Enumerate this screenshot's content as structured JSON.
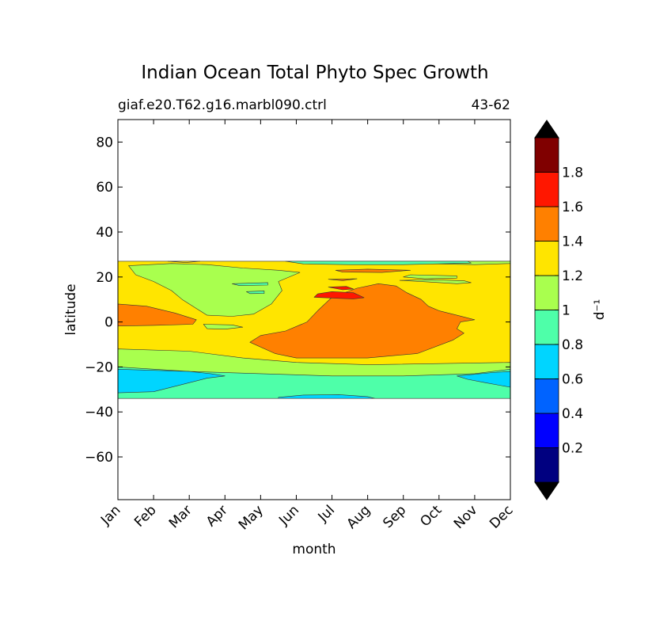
{
  "chart_data": {
    "type": "heatmap",
    "title": "Indian Ocean Total Phyto Spec Growth",
    "subtitle_left": "giaf.e20.T62.g16.marbl090.ctrl",
    "subtitle_right": "43-62",
    "xlabel": "month",
    "ylabel": "latitude",
    "x_categories": [
      "Jan",
      "Feb",
      "Mar",
      "Apr",
      "May",
      "Jun",
      "Jul",
      "Aug",
      "Sep",
      "Oct",
      "Nov",
      "Dec"
    ],
    "xlim": [
      0,
      11
    ],
    "ylim": [
      -79,
      90
    ],
    "y_ticks": [
      80,
      60,
      40,
      20,
      0,
      -20,
      -40,
      -60
    ],
    "y_tick_labels": [
      "80",
      "60",
      "40",
      "20",
      "0",
      "−20",
      "−40",
      "−60"
    ],
    "data_lat_range": [
      -34,
      27
    ],
    "grid": false,
    "colorbar": {
      "label": "d⁻¹",
      "levels": [
        0,
        0.2,
        0.4,
        0.6,
        0.8,
        1.0,
        1.2,
        1.4,
        1.6,
        1.8,
        2.0
      ],
      "tick_values": [
        0.2,
        0.4,
        0.6,
        0.8,
        1.0,
        1.2,
        1.4,
        1.6,
        1.8
      ],
      "tick_labels": [
        "0.2",
        "0.4",
        "0.6",
        "0.8",
        "1",
        "1.2",
        "1.4",
        "1.6",
        "1.8"
      ],
      "colors": [
        "#000080",
        "#0000ff",
        "#0063ff",
        "#00d5ff",
        "#4effa9",
        "#a9ff4e",
        "#ffe500",
        "#ff8000",
        "#ff1700",
        "#800000"
      ],
      "extend": "both",
      "under_color": "#000000",
      "over_color": "#000000"
    },
    "regions": [
      {
        "level": 1.2,
        "color": "#ffe500",
        "points": [
          [
            0,
            27
          ],
          [
            11,
            27
          ],
          [
            11,
            -34
          ],
          [
            0,
            -34
          ]
        ]
      },
      {
        "level": 1.0,
        "color": "#a9ff4e",
        "points": [
          [
            0,
            -12
          ],
          [
            2,
            -13
          ],
          [
            3.5,
            -16
          ],
          [
            5,
            -18
          ],
          [
            7,
            -19
          ],
          [
            9,
            -18.5
          ],
          [
            11,
            -18
          ],
          [
            11,
            -34
          ],
          [
            0,
            -34
          ]
        ]
      },
      {
        "level": 0.8,
        "color": "#4effa9",
        "points": [
          [
            0,
            -20
          ],
          [
            2,
            -22
          ],
          [
            4,
            -23
          ],
          [
            6,
            -24
          ],
          [
            8,
            -24
          ],
          [
            10,
            -23
          ],
          [
            11,
            -21
          ],
          [
            11,
            -34
          ],
          [
            0,
            -34
          ]
        ]
      },
      {
        "level": 0.6,
        "color": "#00d5ff",
        "points": [
          [
            0,
            -21
          ],
          [
            1,
            -21.5
          ],
          [
            2,
            -22
          ],
          [
            2.6,
            -23
          ],
          [
            3,
            -24
          ],
          [
            2.5,
            -25
          ],
          [
            2,
            -27
          ],
          [
            1,
            -31
          ],
          [
            0,
            -31.5
          ]
        ]
      },
      {
        "level": 0.6,
        "color": "#00d5ff",
        "points": [
          [
            9.5,
            -24
          ],
          [
            10.5,
            -22.5
          ],
          [
            11,
            -22
          ],
          [
            11,
            -29
          ],
          [
            10.3,
            -27
          ],
          [
            9.8,
            -25.5
          ]
        ]
      },
      {
        "level": 0.6,
        "color": "#00d5ff",
        "points": [
          [
            4.5,
            -33.5
          ],
          [
            5.2,
            -32.5
          ],
          [
            6.2,
            -32.3
          ],
          [
            7,
            -33.2
          ],
          [
            7.2,
            -34
          ],
          [
            4.5,
            -34
          ]
        ]
      },
      {
        "level": 1.0,
        "color": "#a9ff4e",
        "points": [
          [
            0.3,
            25
          ],
          [
            1.5,
            26
          ],
          [
            2.5,
            25.5
          ],
          [
            3.5,
            24
          ],
          [
            4.5,
            23
          ],
          [
            5.1,
            22
          ],
          [
            4.5,
            18
          ],
          [
            4.6,
            14
          ],
          [
            4.3,
            8
          ],
          [
            3.8,
            3.5
          ],
          [
            3.2,
            2.5
          ],
          [
            2.5,
            3
          ],
          [
            2.2,
            6
          ],
          [
            1.8,
            10
          ],
          [
            1.5,
            14
          ],
          [
            1,
            18
          ],
          [
            0.5,
            21
          ]
        ]
      },
      {
        "level": 1.0,
        "color": "#a9ff4e",
        "points": [
          [
            5,
            27
          ],
          [
            11,
            27
          ],
          [
            11,
            26
          ],
          [
            10,
            25.5
          ],
          [
            9,
            25.8
          ],
          [
            8,
            26
          ],
          [
            6.5,
            26
          ],
          [
            5.5,
            26.5
          ]
        ]
      },
      {
        "level": 1.0,
        "color": "#a9ff4e",
        "points": [
          [
            8.2,
            21
          ],
          [
            9.5,
            20.5
          ],
          [
            9.5,
            19.5
          ],
          [
            8.6,
            19.2
          ],
          [
            8,
            20
          ]
        ]
      },
      {
        "level": 1.0,
        "color": "#a9ff4e",
        "points": [
          [
            7.9,
            18.5
          ],
          [
            8.7,
            17.8
          ],
          [
            9.5,
            17
          ],
          [
            9.9,
            17.5
          ],
          [
            9.7,
            18.3
          ],
          [
            8.8,
            18.8
          ]
        ]
      },
      {
        "level": 1.0,
        "color": "#a9ff4e",
        "points": [
          [
            2.4,
            -1
          ],
          [
            3.2,
            -1.3
          ],
          [
            3.5,
            -2.3
          ],
          [
            3,
            -3.2
          ],
          [
            2.5,
            -3
          ]
        ]
      },
      {
        "level": 1.4,
        "color": "#ff8000",
        "points": [
          [
            0,
            8
          ],
          [
            0.8,
            7
          ],
          [
            1.6,
            4
          ],
          [
            2.2,
            1
          ],
          [
            2.1,
            -1
          ],
          [
            1,
            -1.5
          ],
          [
            0,
            -1.8
          ]
        ]
      },
      {
        "level": 1.4,
        "color": "#ff8000",
        "points": [
          [
            4.7,
            -4
          ],
          [
            5.3,
            0
          ],
          [
            5.6,
            5
          ],
          [
            6,
            11
          ],
          [
            6.7,
            15
          ],
          [
            7.3,
            17
          ],
          [
            7.8,
            16
          ],
          [
            8.1,
            13
          ],
          [
            8.5,
            10
          ],
          [
            8.7,
            7
          ],
          [
            9,
            5
          ],
          [
            9.5,
            3
          ],
          [
            10,
            1
          ],
          [
            9.6,
            0
          ],
          [
            9.5,
            -3
          ],
          [
            9.7,
            -5
          ],
          [
            9.4,
            -8
          ],
          [
            8.4,
            -14
          ],
          [
            7,
            -16
          ],
          [
            5,
            -16
          ],
          [
            4.4,
            -14
          ],
          [
            3.7,
            -9
          ],
          [
            4,
            -6
          ]
        ]
      },
      {
        "level": 1.4,
        "color": "#ff8000",
        "points": [
          [
            6.1,
            23
          ],
          [
            7,
            23.5
          ],
          [
            8.2,
            23
          ],
          [
            7.4,
            22
          ],
          [
            6.3,
            22.2
          ]
        ]
      },
      {
        "level": 1.4,
        "color": "#ff8000",
        "points": [
          [
            5.9,
            19
          ],
          [
            6.7,
            19.2
          ],
          [
            6.3,
            18.4
          ]
        ]
      },
      {
        "level": 1.6,
        "color": "#ff1700",
        "points": [
          [
            5.5,
            11
          ],
          [
            6.2,
            10.5
          ],
          [
            6.6,
            10.3
          ],
          [
            6.9,
            10.8
          ],
          [
            6.6,
            13
          ],
          [
            6,
            13.5
          ],
          [
            5.6,
            12.5
          ]
        ]
      },
      {
        "level": 1.6,
        "color": "#ff1700",
        "points": [
          [
            5.9,
            15.5
          ],
          [
            6.3,
            14.3
          ],
          [
            6.6,
            14.7
          ],
          [
            6.4,
            15.8
          ]
        ]
      },
      {
        "level": 0.8,
        "color": "#4effa9",
        "points": [
          [
            4.7,
            27
          ],
          [
            9.8,
            27
          ],
          [
            9.9,
            26.2
          ],
          [
            8,
            25.5
          ],
          [
            6.5,
            25.5
          ],
          [
            5.2,
            25.8
          ]
        ]
      },
      {
        "level": 0.8,
        "color": "#4effa9",
        "points": [
          [
            3.2,
            17
          ],
          [
            4.2,
            17.5
          ],
          [
            4.2,
            16.4
          ],
          [
            3.4,
            16.2
          ]
        ]
      },
      {
        "level": 0.8,
        "color": "#4effa9",
        "points": [
          [
            3.6,
            13.5
          ],
          [
            4.1,
            13.8
          ],
          [
            4.1,
            12.7
          ],
          [
            3.7,
            12.6
          ]
        ]
      },
      {
        "level": 1.2,
        "color": "#ffe500",
        "points": [
          [
            1.4,
            27
          ],
          [
            2.3,
            27
          ],
          [
            1.9,
            26.4
          ]
        ]
      }
    ]
  }
}
